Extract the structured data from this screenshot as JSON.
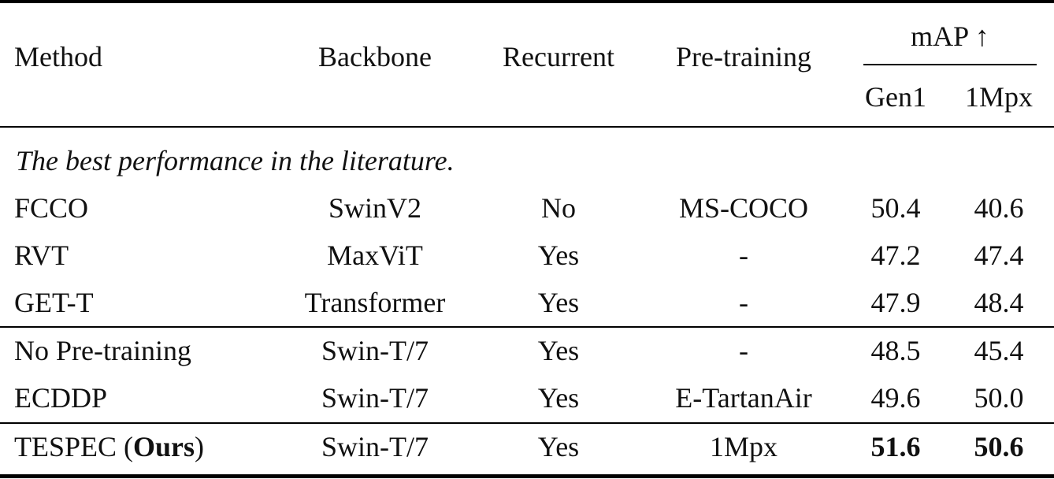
{
  "header": {
    "method": "Method",
    "backbone": "Backbone",
    "recurrent": "Recurrent",
    "pretraining": "Pre-training",
    "map": "mAP ↑",
    "gen1": "Gen1",
    "mpx": "1Mpx"
  },
  "section_label": "The best performance in the literature.",
  "rows": [
    {
      "method": "FCCO",
      "backbone": "SwinV2",
      "recurrent": "No",
      "pretraining": "MS-COCO",
      "gen1": "50.4",
      "mpx": "40.6"
    },
    {
      "method": "RVT",
      "backbone": "MaxViT",
      "recurrent": "Yes",
      "pretraining": "-",
      "gen1": "47.2",
      "mpx": "47.4"
    },
    {
      "method": "GET-T",
      "backbone": "Transformer",
      "recurrent": "Yes",
      "pretraining": "-",
      "gen1": "47.9",
      "mpx": "48.4"
    },
    {
      "method": "No Pre-training",
      "backbone": "Swin-T/7",
      "recurrent": "Yes",
      "pretraining": "-",
      "gen1": "48.5",
      "mpx": "45.4"
    },
    {
      "method": "ECDDP",
      "backbone": "Swin-T/7",
      "recurrent": "Yes",
      "pretraining": "E-TartanAir",
      "gen1": "49.6",
      "mpx": "50.0"
    }
  ],
  "ours": {
    "method_prefix": "TESPEC (",
    "method_bold": "Ours",
    "method_suffix": ")",
    "backbone": "Swin-T/7",
    "recurrent": "Yes",
    "pretraining": "1Mpx",
    "gen1": "51.6",
    "mpx": "50.6"
  }
}
